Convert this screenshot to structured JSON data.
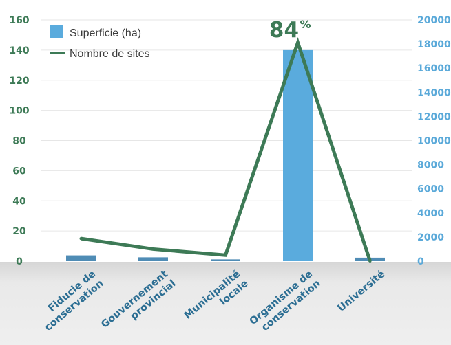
{
  "chart_data": {
    "type": "bar",
    "title": "",
    "xlabel": "",
    "categories": [
      [
        "Fiducie de",
        "conservation"
      ],
      [
        "Gouvernement",
        "provincial"
      ],
      [
        "Municipalité",
        "locale"
      ],
      [
        "Organisme de",
        "conservation"
      ],
      [
        "Université"
      ]
    ],
    "series": [
      {
        "name": "Superficie (ha)",
        "type": "bar",
        "axis": "right",
        "color": "#5aabdd",
        "values": [
          480,
          320,
          150,
          17500,
          290
        ]
      },
      {
        "name": "Nombre de sites",
        "type": "line",
        "axis": "left",
        "color": "#3d7a56",
        "values": [
          15,
          8,
          4,
          145,
          0
        ]
      }
    ],
    "left_axis": {
      "min": 0,
      "max": 160,
      "ticks": [
        0,
        20,
        40,
        60,
        80,
        100,
        120,
        140,
        160
      ],
      "color": "#3d7a56"
    },
    "right_axis": {
      "min": 0,
      "max": 20000,
      "ticks": [
        0,
        2000,
        4000,
        6000,
        8000,
        10000,
        12000,
        14000,
        16000,
        18000,
        20000
      ],
      "color": "#5aa9d9"
    },
    "grid": true,
    "legend": {
      "position": "top-left"
    },
    "annotation": {
      "text": "84",
      "suffix": "%",
      "category_index": 3
    }
  }
}
